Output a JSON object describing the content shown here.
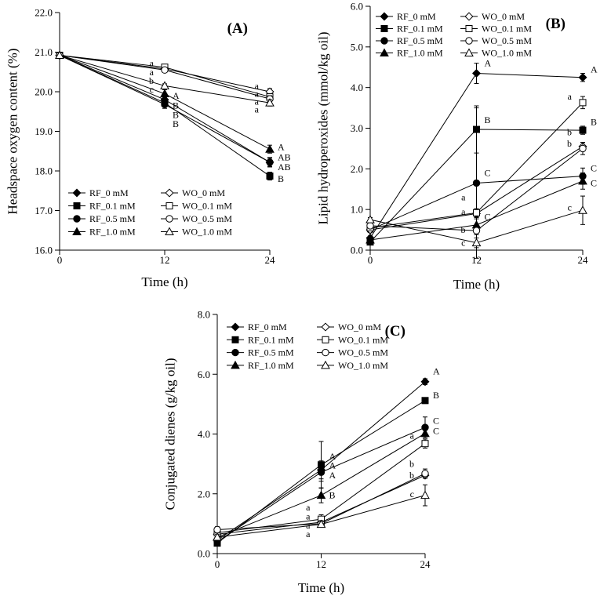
{
  "chart_data": [
    {
      "type": "line",
      "panel": "(A)",
      "xlabel": "Time (h)",
      "ylabel": "Headspace oxygen content (%)",
      "x": [
        0,
        12,
        24
      ],
      "xticks": [
        "0",
        "12",
        "24"
      ],
      "ylim": [
        16.0,
        22.0
      ],
      "yticks": [
        "16.0",
        "17.0",
        "18.0",
        "19.0",
        "20.0",
        "21.0",
        "22.0"
      ],
      "legend_position": "bottom-left",
      "series": [
        {
          "name": "RF_0 mM",
          "marker": "diamond",
          "filled": true,
          "values": [
            20.92,
            19.8,
            18.22
          ],
          "errors": [
            0,
            0.1,
            0.12
          ]
        },
        {
          "name": "RF_0.1 mM",
          "marker": "square",
          "filled": true,
          "values": [
            20.92,
            19.72,
            17.87
          ],
          "errors": [
            0,
            0.1,
            0.1
          ]
        },
        {
          "name": "RF_0.5 mM",
          "marker": "circle",
          "filled": true,
          "values": [
            20.92,
            19.68,
            18.22
          ],
          "errors": [
            0,
            0.1,
            0.1
          ]
        },
        {
          "name": "RF_1.0 mM",
          "marker": "triangle",
          "filled": true,
          "values": [
            20.92,
            19.95,
            18.55
          ],
          "errors": [
            0,
            0.1,
            0.1
          ]
        },
        {
          "name": "WO_0 mM",
          "marker": "diamond",
          "filled": false,
          "values": [
            20.92,
            20.58,
            20.0
          ],
          "errors": [
            0,
            0.05,
            0.08
          ]
        },
        {
          "name": "WO_0.1 mM",
          "marker": "square",
          "filled": false,
          "values": [
            20.92,
            20.62,
            19.87
          ],
          "errors": [
            0,
            0.05,
            0.08
          ]
        },
        {
          "name": "WO_0.5 mM",
          "marker": "circle",
          "filled": false,
          "values": [
            20.92,
            20.55,
            19.82
          ],
          "errors": [
            0,
            0.05,
            0.08
          ]
        },
        {
          "name": "WO_1.0 mM",
          "marker": "triangle",
          "filled": false,
          "values": [
            20.92,
            20.15,
            19.72
          ],
          "errors": [
            0,
            0.05,
            0.08
          ]
        }
      ],
      "annotations": [
        {
          "text": "a",
          "x": 12,
          "y": 20.72,
          "side": "left"
        },
        {
          "text": "a",
          "x": 12,
          "y": 20.5,
          "side": "left"
        },
        {
          "text": "b",
          "x": 12,
          "y": 20.28,
          "side": "left"
        },
        {
          "text": "c",
          "x": 12,
          "y": 20.06,
          "side": "left"
        },
        {
          "text": "A",
          "x": 12,
          "y": 19.9,
          "side": "right"
        },
        {
          "text": "B",
          "x": 12,
          "y": 19.65,
          "side": "right"
        },
        {
          "text": "B",
          "x": 12,
          "y": 19.42,
          "side": "right"
        },
        {
          "text": "B",
          "x": 12,
          "y": 19.19,
          "side": "right"
        },
        {
          "text": "a",
          "x": 24,
          "y": 20.15,
          "side": "left"
        },
        {
          "text": "a",
          "x": 24,
          "y": 19.95,
          "side": "left"
        },
        {
          "text": "a",
          "x": 24,
          "y": 19.75,
          "side": "left"
        },
        {
          "text": "a",
          "x": 24,
          "y": 19.55,
          "side": "left"
        },
        {
          "text": "A",
          "x": 24,
          "y": 18.6,
          "side": "right"
        },
        {
          "text": "AB",
          "x": 24,
          "y": 18.35,
          "side": "right"
        },
        {
          "text": "AB",
          "x": 24,
          "y": 18.1,
          "side": "right"
        },
        {
          "text": "B",
          "x": 24,
          "y": 17.8,
          "side": "right"
        }
      ]
    },
    {
      "type": "line",
      "panel": "(B)",
      "xlabel": "Time (h)",
      "ylabel": "Lipid hydroperoxides (mmol/kg oil)",
      "x": [
        0,
        12,
        24
      ],
      "xticks": [
        "0",
        "12",
        "24"
      ],
      "ylim": [
        0.0,
        6.0
      ],
      "yticks": [
        "0.0",
        "1.0",
        "2.0",
        "3.0",
        "4.0",
        "5.0",
        "6.0"
      ],
      "legend_position": "top-left",
      "series": [
        {
          "name": "RF_0 mM",
          "marker": "diamond",
          "filled": true,
          "values": [
            0.3,
            4.35,
            4.25
          ],
          "errors": [
            0.05,
            0.25,
            0.1
          ]
        },
        {
          "name": "RF_0.1 mM",
          "marker": "square",
          "filled": true,
          "values": [
            0.2,
            2.97,
            2.95
          ],
          "errors": [
            0.05,
            0.58,
            0.1
          ]
        },
        {
          "name": "RF_0.5 mM",
          "marker": "circle",
          "filled": true,
          "values": [
            0.5,
            1.65,
            1.82
          ],
          "errors": [
            0.05,
            1.85,
            0.2
          ]
        },
        {
          "name": "RF_1.0 mM",
          "marker": "triangle",
          "filled": true,
          "values": [
            0.25,
            0.62,
            1.7
          ],
          "errors": [
            0.05,
            0.15,
            0.2
          ]
        },
        {
          "name": "WO_0 mM",
          "marker": "diamond",
          "filled": false,
          "values": [
            0.5,
            0.9,
            2.55
          ],
          "errors": [
            0.05,
            0.1,
            0.1
          ]
        },
        {
          "name": "WO_0.1 mM",
          "marker": "square",
          "filled": false,
          "values": [
            0.55,
            0.92,
            3.63
          ],
          "errors": [
            0.05,
            0.1,
            0.15
          ]
        },
        {
          "name": "WO_0.5 mM",
          "marker": "circle",
          "filled": false,
          "values": [
            0.6,
            0.48,
            2.5
          ],
          "errors": [
            0.05,
            0.1,
            0.15
          ]
        },
        {
          "name": "WO_1.0 mM",
          "marker": "triangle",
          "filled": false,
          "values": [
            0.75,
            0.18,
            0.98
          ],
          "errors": [
            0.05,
            0.12,
            0.35
          ]
        }
      ],
      "annotations": [
        {
          "text": "A",
          "x": 12,
          "y": 4.6,
          "side": "right"
        },
        {
          "text": "B",
          "x": 12,
          "y": 3.2,
          "side": "right"
        },
        {
          "text": "C",
          "x": 12,
          "y": 1.9,
          "side": "right"
        },
        {
          "text": "C",
          "x": 12,
          "y": 0.82,
          "side": "right"
        },
        {
          "text": "a",
          "x": 12,
          "y": 1.3,
          "side": "left"
        },
        {
          "text": "a",
          "x": 12,
          "y": 0.95,
          "side": "left"
        },
        {
          "text": "b",
          "x": 12,
          "y": 0.5,
          "side": "left"
        },
        {
          "text": "c",
          "x": 12,
          "y": 0.18,
          "side": "left"
        },
        {
          "text": "A",
          "x": 24,
          "y": 4.45,
          "side": "right"
        },
        {
          "text": "B",
          "x": 24,
          "y": 3.15,
          "side": "right"
        },
        {
          "text": "C",
          "x": 24,
          "y": 2.02,
          "side": "right"
        },
        {
          "text": "C",
          "x": 24,
          "y": 1.65,
          "side": "right"
        },
        {
          "text": "a",
          "x": 24,
          "y": 3.78,
          "side": "left"
        },
        {
          "text": "b",
          "x": 24,
          "y": 2.9,
          "side": "left"
        },
        {
          "text": "b",
          "x": 24,
          "y": 2.62,
          "side": "left"
        },
        {
          "text": "c",
          "x": 24,
          "y": 1.05,
          "side": "left"
        }
      ]
    },
    {
      "type": "line",
      "panel": "(C)",
      "xlabel": "Time (h)",
      "ylabel": "Conjugated dienes (g/kg oil)",
      "x": [
        0,
        12,
        24
      ],
      "xticks": [
        "0",
        "12",
        "24"
      ],
      "ylim": [
        0.0,
        8.0
      ],
      "yticks": [
        "0.0",
        "2.0",
        "4.0",
        "6.0",
        "8.0"
      ],
      "legend_position": "top-left",
      "series": [
        {
          "name": "RF_0 mM",
          "marker": "diamond",
          "filled": true,
          "values": [
            0.45,
            2.8,
            5.75
          ],
          "errors": [
            0.1,
            0.3,
            0.1
          ]
        },
        {
          "name": "RF_0.1 mM",
          "marker": "square",
          "filled": true,
          "values": [
            0.35,
            2.97,
            5.12
          ],
          "errors": [
            0.1,
            0.78,
            0.1
          ]
        },
        {
          "name": "RF_0.5 mM",
          "marker": "circle",
          "filled": true,
          "values": [
            0.4,
            2.72,
            4.22
          ],
          "errors": [
            0.1,
            0.3,
            0.35
          ]
        },
        {
          "name": "RF_1.0 mM",
          "marker": "triangle",
          "filled": true,
          "values": [
            0.55,
            1.95,
            4.02
          ],
          "errors": [
            0.1,
            0.25,
            0.1
          ]
        },
        {
          "name": "WO_0 mM",
          "marker": "diamond",
          "filled": false,
          "values": [
            0.65,
            1.05,
            2.62
          ],
          "errors": [
            0.1,
            0.1,
            0.1
          ]
        },
        {
          "name": "WO_0.1 mM",
          "marker": "square",
          "filled": false,
          "values": [
            0.7,
            1.15,
            3.68
          ],
          "errors": [
            0.1,
            0.15,
            0.15
          ]
        },
        {
          "name": "WO_0.5 mM",
          "marker": "circle",
          "filled": false,
          "values": [
            0.8,
            1.0,
            2.68
          ],
          "errors": [
            0.1,
            0.1,
            0.15
          ]
        },
        {
          "name": "WO_1.0 mM",
          "marker": "triangle",
          "filled": false,
          "values": [
            0.55,
            0.98,
            1.95
          ],
          "errors": [
            0.1,
            0.1,
            0.35
          ]
        }
      ],
      "annotations": [
        {
          "text": "A",
          "x": 12,
          "y": 3.25,
          "side": "right"
        },
        {
          "text": "A",
          "x": 12,
          "y": 2.95,
          "side": "right"
        },
        {
          "text": "A",
          "x": 12,
          "y": 2.62,
          "side": "right"
        },
        {
          "text": "B",
          "x": 12,
          "y": 1.95,
          "side": "right"
        },
        {
          "text": "a",
          "x": 12,
          "y": 1.55,
          "side": "left"
        },
        {
          "text": "a",
          "x": 12,
          "y": 1.25,
          "side": "left"
        },
        {
          "text": "a",
          "x": 12,
          "y": 0.95,
          "side": "left"
        },
        {
          "text": "a",
          "x": 12,
          "y": 0.65,
          "side": "left"
        },
        {
          "text": "A",
          "x": 24,
          "y": 6.1,
          "side": "right"
        },
        {
          "text": "B",
          "x": 24,
          "y": 5.3,
          "side": "right"
        },
        {
          "text": "C",
          "x": 24,
          "y": 4.45,
          "side": "right"
        },
        {
          "text": "C",
          "x": 24,
          "y": 4.1,
          "side": "right"
        },
        {
          "text": "a",
          "x": 24,
          "y": 3.95,
          "side": "left"
        },
        {
          "text": "b",
          "x": 24,
          "y": 3.0,
          "side": "left"
        },
        {
          "text": "b",
          "x": 24,
          "y": 2.62,
          "side": "left"
        },
        {
          "text": "c",
          "x": 24,
          "y": 2.0,
          "side": "left"
        }
      ]
    }
  ]
}
